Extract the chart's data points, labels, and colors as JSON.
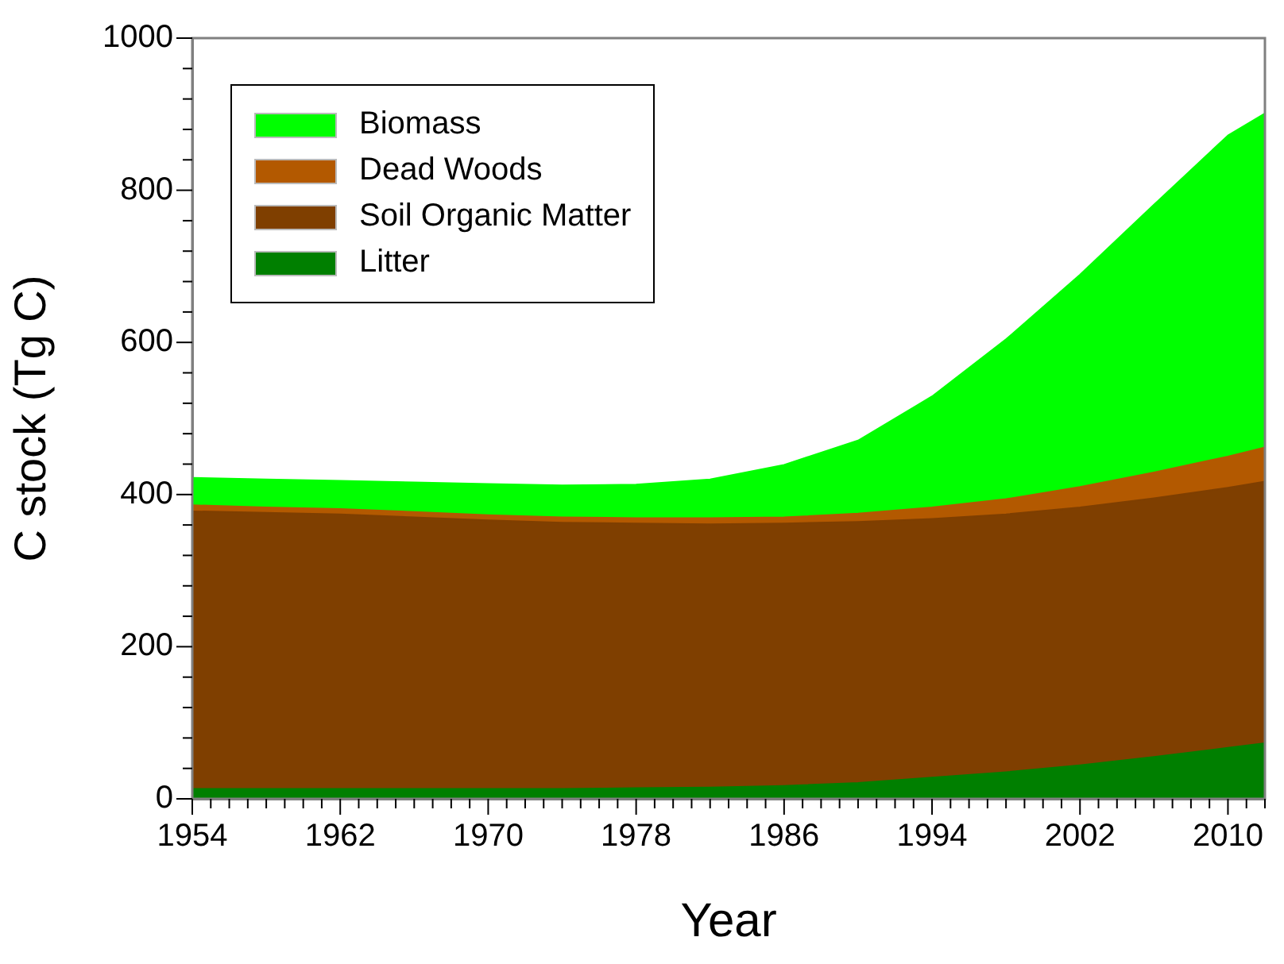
{
  "chart_data": {
    "type": "area",
    "xlabel": "Year",
    "ylabel": "C stock (Tg C)",
    "x": [
      1954,
      1958,
      1962,
      1966,
      1970,
      1974,
      1978,
      1982,
      1986,
      1990,
      1994,
      1998,
      2002,
      2006,
      2010,
      2012
    ],
    "series": [
      {
        "name": "Litter",
        "color": "#007f00",
        "values": [
          13,
          13,
          13,
          13,
          13,
          13,
          14,
          15,
          17,
          21,
          28,
          35,
          44,
          55,
          67,
          73
        ]
      },
      {
        "name": "Soil Organic Matter",
        "color": "#7f3f00",
        "values": [
          365,
          363,
          361,
          357,
          353,
          350,
          348,
          346,
          345,
          343,
          340,
          339,
          339,
          340,
          342,
          344
        ]
      },
      {
        "name": "Dead Woods",
        "color": "#b35900",
        "values": [
          8,
          7,
          7,
          7,
          7,
          7,
          7,
          8,
          8,
          11,
          15,
          20,
          27,
          34,
          41,
          45
        ]
      },
      {
        "name": "Biomass",
        "color": "#00ff00",
        "values": [
          36,
          37,
          37,
          39,
          41,
          42,
          44,
          51,
          69,
          96,
          146,
          210,
          279,
          352,
          422,
          439
        ]
      }
    ],
    "stacked": true,
    "legend": "top left",
    "grid": false,
    "xlim": [
      1954,
      2012
    ],
    "ylim": [
      0,
      1000
    ],
    "xticks": [
      1954,
      {
        "value": 1955,
        "label": null
      },
      {
        "value": 1956,
        "label": null
      },
      {
        "value": 1957,
        "label": null
      },
      {
        "value": 1958,
        "label": null
      },
      {
        "value": 1959,
        "label": null
      },
      {
        "value": 1960,
        "label": null
      },
      {
        "value": 1961,
        "label": null
      },
      1962,
      {
        "value": 1963,
        "label": null
      },
      {
        "value": 1964,
        "label": null
      },
      {
        "value": 1965,
        "label": null
      },
      {
        "value": 1966,
        "label": null
      },
      {
        "value": 1967,
        "label": null
      },
      {
        "value": 1968,
        "label": null
      },
      {
        "value": 1969,
        "label": null
      },
      1970,
      {
        "value": 1971,
        "label": null
      },
      {
        "value": 1972,
        "label": null
      },
      {
        "value": 1973,
        "label": null
      },
      {
        "value": 1974,
        "label": null
      },
      {
        "value": 1975,
        "label": null
      },
      {
        "value": 1976,
        "label": null
      },
      {
        "value": 1977,
        "label": null
      },
      1978,
      {
        "value": 1979,
        "label": null
      },
      {
        "value": 1980,
        "label": null
      },
      {
        "value": 1981,
        "label": null
      },
      {
        "value": 1982,
        "label": null
      },
      {
        "value": 1983,
        "label": null
      },
      {
        "value": 1984,
        "label": null
      },
      {
        "value": 1985,
        "label": null
      },
      1986,
      {
        "value": 1987,
        "label": null
      },
      {
        "value": 1988,
        "label": null
      },
      {
        "value": 1989,
        "label": null
      },
      {
        "value": 1990,
        "label": null
      },
      {
        "value": 1991,
        "label": null
      },
      {
        "value": 1992,
        "label": null
      },
      {
        "value": 1993,
        "label": null
      },
      1994,
      {
        "value": 1995,
        "label": null
      },
      {
        "value": 1996,
        "label": null
      },
      {
        "value": 1997,
        "label": null
      },
      {
        "value": 1998,
        "label": null
      },
      {
        "value": 1999,
        "label": null
      },
      {
        "value": 2000,
        "label": null
      },
      {
        "value": 2001,
        "label": null
      },
      2002,
      {
        "value": 2003,
        "label": null
      },
      {
        "value": 2004,
        "label": null
      },
      {
        "value": 2005,
        "label": null
      },
      {
        "value": 2006,
        "label": null
      },
      {
        "value": 2007,
        "label": null
      },
      {
        "value": 2008,
        "label": null
      },
      {
        "value": 2009,
        "label": null
      },
      2010,
      {
        "value": 2011,
        "label": null
      },
      {
        "value": 2012,
        "label": null
      }
    ],
    "yticks": [
      0,
      {
        "value": 40,
        "label": null
      },
      {
        "value": 80,
        "label": null
      },
      {
        "value": 120,
        "label": null
      },
      {
        "value": 160,
        "label": null
      },
      200,
      {
        "value": 240,
        "label": null
      },
      {
        "value": 280,
        "label": null
      },
      {
        "value": 320,
        "label": null
      },
      {
        "value": 360,
        "label": null
      },
      400,
      {
        "value": 440,
        "label": null
      },
      {
        "value": 480,
        "label": null
      },
      {
        "value": 520,
        "label": null
      },
      {
        "value": 560,
        "label": null
      },
      600,
      {
        "value": 640,
        "label": null
      },
      {
        "value": 680,
        "label": null
      },
      {
        "value": 720,
        "label": null
      },
      {
        "value": 760,
        "label": null
      },
      800,
      {
        "value": 840,
        "label": null
      },
      {
        "value": 880,
        "label": null
      },
      {
        "value": 920,
        "label": null
      },
      {
        "value": 960,
        "label": null
      },
      1000
    ]
  }
}
